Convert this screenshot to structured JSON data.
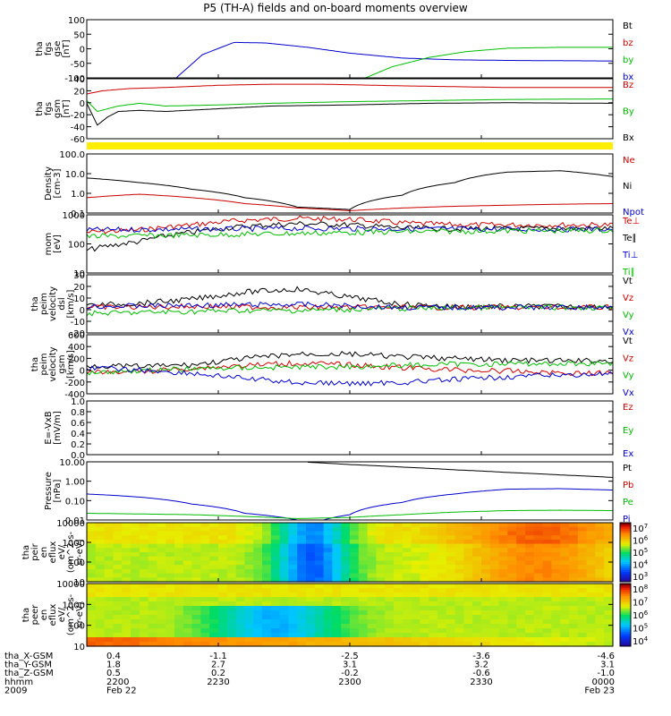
{
  "chart_data": {
    "type": "line",
    "title": "P5 (TH-A) fields and on-board moments overview",
    "x_range": [
      "2200",
      "0000"
    ],
    "panels": [
      {
        "id": "fgs-gse",
        "ylabel": [
          "tha",
          "fgs",
          "gse",
          "[nT]"
        ],
        "yticks": [
          "100",
          "50",
          "0",
          "-50",
          "-100"
        ],
        "ylim": [
          -100,
          100
        ],
        "legend": [
          {
            "label": "Bt",
            "color": "#000000"
          },
          {
            "label": "bz",
            "color": "#cc0000"
          },
          {
            "label": "by",
            "color": "#00bb00"
          },
          {
            "label": "bx",
            "color": "#0000cc"
          }
        ],
        "series": [
          {
            "color": "#0000cc",
            "x": [
              0.17,
              0.22,
              0.28,
              0.34,
              0.42,
              0.5,
              0.6,
              0.7,
              0.8,
              0.9,
              1.0
            ],
            "y": [
              -100,
              -20,
              22,
              20,
              5,
              -15,
              -32,
              -38,
              -40,
              -41,
              -42
            ]
          },
          {
            "color": "#00bb00",
            "x": [
              0.53,
              0.58,
              0.65,
              0.72,
              0.8,
              0.9,
              1.0
            ],
            "y": [
              -100,
              -62,
              -30,
              -10,
              2,
              5,
              5
            ]
          }
        ]
      },
      {
        "id": "fgs-gsm",
        "ylabel": [
          "tha",
          "fgs",
          "gsm",
          "[nT]"
        ],
        "yticks": [
          "40",
          "20",
          "0",
          "-20",
          "-40",
          "-60"
        ],
        "ylim": [
          -70,
          40
        ],
        "legend": [
          {
            "label": "Bz",
            "color": "#cc0000"
          },
          {
            "label": "By",
            "color": "#00bb00"
          },
          {
            "label": "Bx",
            "color": "#000000"
          }
        ],
        "series": [
          {
            "color": "#cc0000",
            "x": [
              0,
              0.03,
              0.08,
              0.15,
              0.25,
              0.35,
              0.45,
              0.6,
              0.8,
              1.0
            ],
            "y": [
              12,
              18,
              22,
              24,
              28,
              30,
              30,
              27,
              24,
              24
            ]
          },
          {
            "color": "#00bb00",
            "x": [
              0,
              0.02,
              0.04,
              0.06,
              0.1,
              0.15,
              0.25,
              0.35,
              0.5,
              0.65,
              0.8,
              1.0
            ],
            "y": [
              0,
              -20,
              -15,
              -10,
              -5,
              -10,
              -8,
              -5,
              -2,
              0,
              2,
              3
            ]
          },
          {
            "color": "#000000",
            "x": [
              0,
              0.02,
              0.04,
              0.06,
              0.1,
              0.15,
              0.25,
              0.35,
              0.5,
              0.65,
              0.8,
              1.0
            ],
            "y": [
              -5,
              -45,
              -30,
              -20,
              -18,
              -20,
              -15,
              -10,
              -8,
              -5,
              -4,
              -5
            ]
          }
        ]
      },
      {
        "id": "density",
        "ylabel": [
          "Density",
          "[cm-3]"
        ],
        "yticks": [
          "100.0",
          "10.0",
          "1.0",
          "0.1"
        ],
        "log": true,
        "ylim": [
          0.1,
          100
        ],
        "legend": [
          {
            "label": "Ne",
            "color": "#cc0000"
          },
          {
            "label": "Ni",
            "color": "#000000"
          },
          {
            "label": "Npot",
            "color": "#0000cc"
          }
        ],
        "series": [
          {
            "color": "#000000",
            "x": [
              0,
              0.1,
              0.2,
              0.3,
              0.4,
              0.5,
              0.6,
              0.7,
              0.8,
              0.9,
              1.0
            ],
            "y": [
              6,
              3.5,
              1.6,
              0.6,
              0.2,
              0.15,
              0.8,
              3.5,
              12,
              14,
              7
            ]
          },
          {
            "color": "#cc0000",
            "x": [
              0,
              0.1,
              0.2,
              0.3,
              0.4,
              0.5,
              0.6,
              0.7,
              0.8,
              0.9,
              1.0
            ],
            "y": [
              0.6,
              0.9,
              0.6,
              0.3,
              0.18,
              0.13,
              0.18,
              0.22,
              0.25,
              0.28,
              0.3
            ]
          }
        ]
      },
      {
        "id": "mom-temp",
        "ylabel": [
          "mom",
          "[eV]"
        ],
        "yticks": [
          "1000",
          "100",
          "10"
        ],
        "log": true,
        "ylim": [
          10,
          1000
        ],
        "legend": [
          {
            "label": "Te⊥",
            "color": "#cc0000"
          },
          {
            "label": "Te∥",
            "color": "#000000"
          },
          {
            "label": "Ti⊥",
            "color": "#0000cc"
          },
          {
            "label": "Ti∥",
            "color": "#00bb00"
          }
        ],
        "series": [
          {
            "color": "#cc0000",
            "x": [
              0,
              0.1,
              0.2,
              0.3,
              0.4,
              0.5,
              0.6,
              0.7,
              0.8,
              0.9,
              1.0
            ],
            "y": [
              250,
              300,
              450,
              650,
              750,
              700,
              520,
              450,
              450,
              450,
              450
            ]
          },
          {
            "color": "#000000",
            "x": [
              0,
              0.1,
              0.2,
              0.3,
              0.4,
              0.5,
              0.6,
              0.7,
              0.8,
              0.9,
              1.0
            ],
            "y": [
              60,
              120,
              250,
              400,
              500,
              450,
              350,
              330,
              330,
              340,
              340
            ]
          },
          {
            "color": "#0000cc",
            "x": [
              0,
              0.2,
              0.4,
              0.6,
              0.8,
              1.0
            ],
            "y": [
              300,
              320,
              340,
              330,
              320,
              320
            ]
          },
          {
            "color": "#00bb00",
            "x": [
              0,
              0.2,
              0.4,
              0.6,
              0.8,
              1.0
            ],
            "y": [
              180,
              200,
              230,
              260,
              280,
              290
            ]
          }
        ]
      },
      {
        "id": "peim-velocity-dsl",
        "ylabel": [
          "tha",
          "peim",
          "velocity",
          "dsl",
          "[km/s]"
        ],
        "yticks": [
          "30",
          "20",
          "10",
          "0",
          "-10",
          "-20"
        ],
        "ylim": [
          -25,
          32
        ],
        "legend": [
          {
            "label": "Vt",
            "color": "#000000"
          },
          {
            "label": "Vz",
            "color": "#cc0000"
          },
          {
            "label": "Vy",
            "color": "#00bb00"
          },
          {
            "label": "Vx",
            "color": "#0000cc"
          }
        ],
        "series": [
          {
            "color": "#000000",
            "x": [
              0,
              0.1,
              0.2,
              0.3,
              0.4,
              0.5,
              0.6,
              0.7,
              0.8,
              0.9,
              1.0
            ],
            "y": [
              2,
              4,
              8,
              15,
              18,
              10,
              3,
              1,
              1,
              1,
              1
            ]
          },
          {
            "color": "#cc0000",
            "x": [
              0,
              0.2,
              0.4,
              0.6,
              0.8,
              1.0
            ],
            "y": [
              0,
              1,
              0,
              0,
              0,
              0
            ]
          },
          {
            "color": "#00bb00",
            "x": [
              0,
              0.1,
              0.2,
              0.3,
              0.4,
              0.5,
              0.6,
              0.8,
              1.0
            ],
            "y": [
              -6,
              -5,
              -4,
              -3,
              -3,
              -2,
              -1,
              0,
              0
            ]
          },
          {
            "color": "#0000cc",
            "x": [
              0,
              0.2,
              0.4,
              0.6,
              0.8,
              1.0
            ],
            "y": [
              1,
              2,
              3,
              0,
              0,
              0
            ]
          }
        ]
      },
      {
        "id": "peim-velocity-gsm",
        "ylabel": [
          "tha",
          "peim",
          "velocity",
          "gsm",
          "[km/s]"
        ],
        "yticks": [
          "600",
          "400",
          "200",
          "0",
          "-200",
          "-400"
        ],
        "ylim": [
          -420,
          620
        ],
        "legend": [
          {
            "label": "Vt",
            "color": "#000000"
          },
          {
            "label": "Vz",
            "color": "#cc0000"
          },
          {
            "label": "Vy",
            "color": "#00bb00"
          },
          {
            "label": "Vx",
            "color": "#0000cc"
          }
        ],
        "series": [
          {
            "color": "#000000",
            "x": [
              0,
              0.1,
              0.2,
              0.3,
              0.4,
              0.5,
              0.6,
              0.7,
              0.8,
              0.9,
              1.0
            ],
            "y": [
              80,
              60,
              90,
              200,
              280,
              280,
              230,
              200,
              170,
              160,
              160
            ]
          },
          {
            "color": "#cc0000",
            "x": [
              0,
              0.1,
              0.2,
              0.3,
              0.4,
              0.5,
              0.6,
              0.7,
              0.8,
              0.9,
              1.0
            ],
            "y": [
              -50,
              -30,
              30,
              80,
              120,
              90,
              40,
              0,
              -20,
              -50,
              -60
            ]
          },
          {
            "color": "#00bb00",
            "x": [
              0,
              0.1,
              0.2,
              0.3,
              0.4,
              0.5,
              0.6,
              0.7,
              0.8,
              0.9,
              1.0
            ],
            "y": [
              -40,
              -10,
              20,
              40,
              50,
              60,
              80,
              100,
              110,
              110,
              120
            ]
          },
          {
            "color": "#0000cc",
            "x": [
              0,
              0.1,
              0.2,
              0.3,
              0.4,
              0.5,
              0.6,
              0.7,
              0.8,
              0.9,
              1.0
            ],
            "y": [
              40,
              0,
              -60,
              -150,
              -220,
              -240,
              -220,
              -170,
              -120,
              -90,
              -70
            ]
          }
        ]
      },
      {
        "id": "e-vxb",
        "ylabel": [
          "E=-VxB",
          "[mV/m]"
        ],
        "yticks": [
          "1.0",
          "0.8",
          "0.6",
          "0.4",
          "0.2",
          "0.0"
        ],
        "ylim": [
          0,
          1
        ],
        "legend": [
          {
            "label": "Ez",
            "color": "#cc0000"
          },
          {
            "label": "Ey",
            "color": "#00bb00"
          },
          {
            "label": "Ex",
            "color": "#0000cc"
          }
        ],
        "series": []
      },
      {
        "id": "pressure",
        "ylabel": [
          "Pressure",
          "[nPa]"
        ],
        "yticks": [
          "10.00",
          "1.00",
          "0.10",
          "0.01"
        ],
        "log": true,
        "ylim": [
          0.005,
          10
        ],
        "legend": [
          {
            "label": "Pt",
            "color": "#000000"
          },
          {
            "label": "Pb",
            "color": "#cc0000"
          },
          {
            "label": "Pe",
            "color": "#00bb00"
          },
          {
            "label": "Pi",
            "color": "#0000cc"
          }
        ],
        "series": [
          {
            "color": "#000000",
            "x": [
              0.42,
              0.5,
              0.6,
              0.7,
              0.8,
              0.9,
              1.0
            ],
            "y": [
              9.5,
              7,
              5,
              3.5,
              2.5,
              1.8,
              1.3
            ]
          },
          {
            "color": "#0000cc",
            "x": [
              0,
              0.1,
              0.2,
              0.3,
              0.4,
              0.45,
              0.5,
              0.6,
              0.7,
              0.8,
              0.9,
              1.0
            ],
            "y": [
              0.15,
              0.1,
              0.04,
              0.012,
              0.005,
              0.005,
              0.01,
              0.05,
              0.15,
              0.28,
              0.3,
              0.25
            ]
          },
          {
            "color": "#00bb00",
            "x": [
              0,
              0.1,
              0.2,
              0.3,
              0.4,
              0.5,
              0.6,
              0.7,
              0.8,
              0.9,
              1.0
            ],
            "y": [
              0.012,
              0.011,
              0.01,
              0.008,
              0.006,
              0.007,
              0.01,
              0.014,
              0.017,
              0.018,
              0.017
            ]
          }
        ]
      },
      {
        "id": "peir-en-eflux",
        "type": "heatmap",
        "ylabel": [
          "tha",
          "peir",
          "en",
          "eflux",
          "eV/",
          "(cm^2-s-",
          "sr-eV)"
        ],
        "yticks": [
          "10000",
          "1000",
          "100",
          "10"
        ],
        "colorbar_ticks": [
          "10^7",
          "10^6",
          "10^5",
          "10^4",
          "10^3"
        ]
      },
      {
        "id": "peer-en-eflux",
        "type": "heatmap",
        "ylabel": [
          "tha",
          "peer",
          "en",
          "eflux",
          "eV/",
          "(cm^2-s-",
          "sr-eV)"
        ],
        "yticks": [
          "10000",
          "1000",
          "100",
          "10"
        ],
        "colorbar_ticks": [
          "10^8",
          "10^7",
          "10^6",
          "10^5",
          "10^4"
        ]
      }
    ],
    "ephemeris": {
      "rows": [
        {
          "label": "tha_X-GSM",
          "values": [
            "0.4",
            "-1.1",
            "-2.5",
            "-3.6",
            "-4.6"
          ]
        },
        {
          "label": "tha_Y-GSM",
          "values": [
            "1.8",
            "2.7",
            "3.1",
            "3.2",
            "3.1"
          ]
        },
        {
          "label": "tha_Z-GSM",
          "values": [
            "0.5",
            "0.2",
            "-0.2",
            "-0.6",
            "-1.0"
          ]
        },
        {
          "label": "hhmm",
          "values": [
            "2200",
            "2230",
            "2300",
            "2330",
            "0000"
          ]
        },
        {
          "label": "2009",
          "values": [
            "Feb 22",
            "",
            "",
            "",
            "Feb 23"
          ]
        }
      ]
    }
  }
}
